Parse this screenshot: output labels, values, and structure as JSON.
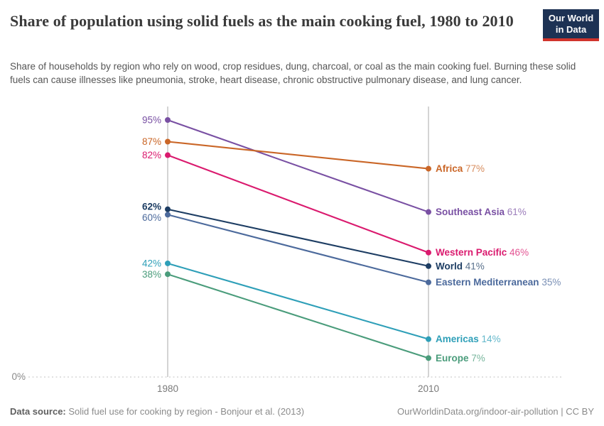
{
  "header": {
    "title": "Share of population using solid fuels as the main cooking fuel, 1980 to 2010",
    "subtitle": "Share of households by region who rely on wood, crop residues, dung, charcoal, or coal as the main cooking fuel. Burning these solid fuels can cause illnesses like pneumonia, stroke, heart disease, chronic obstructive pulmonary disease, and lung cancer.",
    "logo": {
      "line1": "Our World",
      "line2": "in Data",
      "bg_color": "#1d3254",
      "bar_color": "#d0342c"
    }
  },
  "chart_data": {
    "type": "line",
    "subtype": "slope",
    "x": [
      1980,
      2010
    ],
    "x_tick_labels": [
      "1980",
      "2010"
    ],
    "ylim": [
      0,
      100
    ],
    "y_zero_label": "0%",
    "grid": "zero-baseline-dashed",
    "legend_position": "end-of-line-labels",
    "axis_color": "#c9c9c9",
    "baseline_color": "#d6d6d6",
    "tick_label_color": "#7a7a7a",
    "series": [
      {
        "name": "Southeast Asia",
        "values": [
          95,
          61
        ],
        "color": "#7950a3",
        "start_label": "95%",
        "end_label": "Southeast Asia 61%",
        "emphasis": false
      },
      {
        "name": "Africa",
        "values": [
          87,
          77
        ],
        "color": "#ca6627",
        "start_label": "87%",
        "end_label": "Africa 77%",
        "emphasis": false
      },
      {
        "name": "Western Pacific",
        "values": [
          82,
          46
        ],
        "color": "#da1a6e",
        "start_label": "82%",
        "end_label": "Western Pacific 46%",
        "emphasis": false
      },
      {
        "name": "World",
        "values": [
          62,
          41
        ],
        "color": "#1d3d63",
        "start_label": "62%",
        "end_label": "World 41%",
        "emphasis": true
      },
      {
        "name": "Eastern Mediterranean",
        "values": [
          60,
          35
        ],
        "color": "#4c6a9c",
        "start_label": "60%",
        "end_label": "Eastern Mediterranean 35%",
        "emphasis": false
      },
      {
        "name": "Americas",
        "values": [
          42,
          14
        ],
        "color": "#2e9fb8",
        "start_label": "42%",
        "end_label": "Americas 14%",
        "emphasis": false
      },
      {
        "name": "Europe",
        "values": [
          38,
          7
        ],
        "color": "#4a9c7b",
        "start_label": "38%",
        "end_label": "Europe 7%",
        "emphasis": false
      }
    ]
  },
  "footer": {
    "source_label": "Data source:",
    "source_text": "Solid fuel use for cooking by region - Bonjour et al. (2013)",
    "credit": "OurWorldinData.org/indoor-air-pollution | CC BY"
  }
}
